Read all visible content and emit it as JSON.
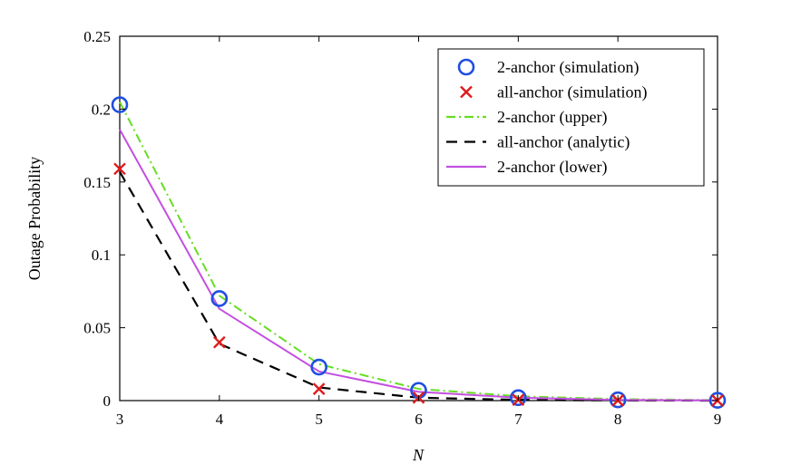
{
  "chart_data": {
    "type": "line",
    "title": "",
    "xlabel": "N",
    "ylabel": "Outage Probability",
    "xlim": [
      3,
      9
    ],
    "ylim": [
      0,
      0.25
    ],
    "x": [
      3,
      4,
      5,
      6,
      7,
      8,
      9
    ],
    "xticks": [
      "3",
      "4",
      "5",
      "6",
      "7",
      "8",
      "9"
    ],
    "yticks": [
      "0",
      "0.05",
      "0.1",
      "0.15",
      "0.2",
      "0.25"
    ],
    "yticks_values": [
      0,
      0.05,
      0.1,
      0.15,
      0.2,
      0.25
    ],
    "grid": false,
    "legend_position": "top-right",
    "series": [
      {
        "name": "2-anchor (simulation)",
        "style": "marker-circle",
        "color": "#1f4fe0",
        "values": [
          0.203,
          0.07,
          0.023,
          0.007,
          0.002,
          0.0005,
          0.0002
        ]
      },
      {
        "name": "all-anchor (simulation)",
        "style": "marker-x",
        "color": "#e01a1a",
        "values": [
          0.159,
          0.04,
          0.008,
          0.002,
          0.0005,
          0.0001,
          0.0
        ]
      },
      {
        "name": "2-anchor (upper)",
        "style": "dashdot",
        "color": "#66dd22",
        "values": [
          0.205,
          0.072,
          0.025,
          0.008,
          0.003,
          0.001,
          0.0003
        ]
      },
      {
        "name": "all-anchor (analytic)",
        "style": "dashed",
        "color": "#000000",
        "values": [
          0.157,
          0.039,
          0.009,
          0.002,
          0.0005,
          0.0001,
          0.0
        ]
      },
      {
        "name": "2-anchor (lower)",
        "style": "solid",
        "color": "#c34fe0",
        "values": [
          0.186,
          0.063,
          0.02,
          0.006,
          0.002,
          0.0005,
          0.0001
        ]
      }
    ]
  }
}
